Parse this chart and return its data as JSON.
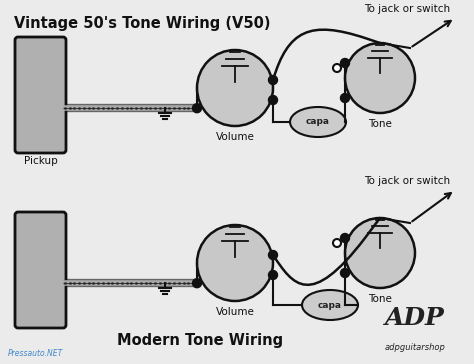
{
  "title_top": "Vintage 50's Tone Wiring (V50)",
  "title_bottom": "Modern Tone Wiring",
  "label_pickup": "Pickup",
  "label_volume": "Volume",
  "label_tone": "Tone",
  "label_capa": "capa",
  "label_jack": "To jack or switch",
  "label_watermark": "Pressauto.NET",
  "label_brand": "adpguitarshop",
  "bg_color": "#ebebeb",
  "pot_fill": "#c8c8c8",
  "pickup_fill": "#b0b0b0",
  "line_color": "#111111",
  "font_size_title": 10.5,
  "font_size_label": 7.5,
  "font_size_small": 6.5
}
